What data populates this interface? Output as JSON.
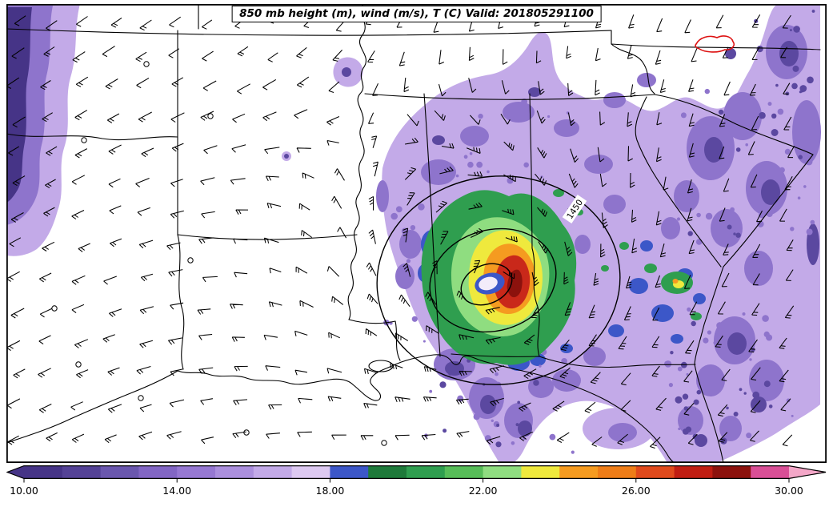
{
  "title": {
    "text": "850 mb height (m), wind (m/s), T (C) Valid: 201805291100"
  },
  "map": {
    "contour_label": "1450",
    "region": "Southeastern United States"
  },
  "palette": {
    "map_bg": "#ffffff",
    "frame": "#000000",
    "lavender": "#c3aae8",
    "purple_mid": "#8e74cc",
    "purple_dark": "#5b48a0",
    "purple_darkest": "#463487",
    "blue": "#3c57c8",
    "green_dark": "#1e7a3a",
    "green": "#2f9e4f",
    "green_light": "#8fdd80",
    "yellow": "#efe93d",
    "orange": "#f59b20",
    "red": "#c9281a",
    "red_dark": "#8c120d",
    "eye": "#f3ecfa",
    "contour_red": "#dd1111",
    "barb": "#000000"
  },
  "colorbar": {
    "min": 10,
    "max": 30,
    "interval": 1,
    "tick_labels": [
      "10.00",
      "14.00",
      "18.00",
      "22.00",
      "26.00",
      "30.00"
    ],
    "segment_colors": [
      "#463487",
      "#544296",
      "#6a57ae",
      "#8266c4",
      "#9678d2",
      "#ab8fdd",
      "#c3aae8",
      "#ddc9f1",
      "#3c57c8",
      "#1e7a3a",
      "#2f9e4f",
      "#57bd58",
      "#8fdd80",
      "#efe93d",
      "#f59b20",
      "#ee7d18",
      "#e04a1c",
      "#c01d12",
      "#8c120d",
      "#d94f96"
    ],
    "under_color": "#463487",
    "over_color": "#f4a7c8"
  },
  "chart_data": {
    "type": "heatmap",
    "title": "850 mb height (m), wind (m/s), T (C) Valid: 201805291100",
    "valid_time": "201805291100",
    "shaded_field": {
      "name": "850 mb temperature",
      "units": "C",
      "range": [
        10,
        30
      ],
      "shade_interval": 1
    },
    "contour_field": {
      "name": "850 mb geopotential height",
      "units": "m",
      "labeled_contours": [
        1450
      ]
    },
    "vector_field": {
      "name": "850 mb wind",
      "units": "m/s",
      "symbol": "wind barbs"
    },
    "colorbar_ticks": [
      10,
      14,
      18,
      22,
      26,
      30
    ],
    "legend_position": "bottom",
    "region": "Southeastern United States (east Texas to the Carolinas, Gulf Coast and Florida)",
    "features": [
      "Closed cyclonic circulation centered over central Alabama with concentric 850 mb height contours, innermost region labeled 1450 m",
      "Warm core ring east of the center: values climb from ~14-18 (lavender/purple) through 18-19 (blue), 19-23 (greens), 23-24 (yellow), 24-26 (orange) to 26-29 (red / dark red)",
      "Small pale eye-like spot with a blue rim at the circulation center",
      "Cool 10-14 band (dark purples) along the far western map edge and down the eastern (Carolinas) edge",
      "Broad 14-18 purple/lavender shield over Alabama, Georgia, the Florida panhandle, Florida peninsula and South Carolina with darker speckling",
      "Unshaded (below range) white area over Texas, Oklahoma, Arkansas and Louisiana with west-southwesterly wind barbs",
      "Cyclonic (counterclockwise) wind barbs wrapping around the storm center",
      "Small closed red contour near the top-right corner (western North Carolina)",
      "Scattered calm-wind station circles over the unshaded western area"
    ]
  }
}
